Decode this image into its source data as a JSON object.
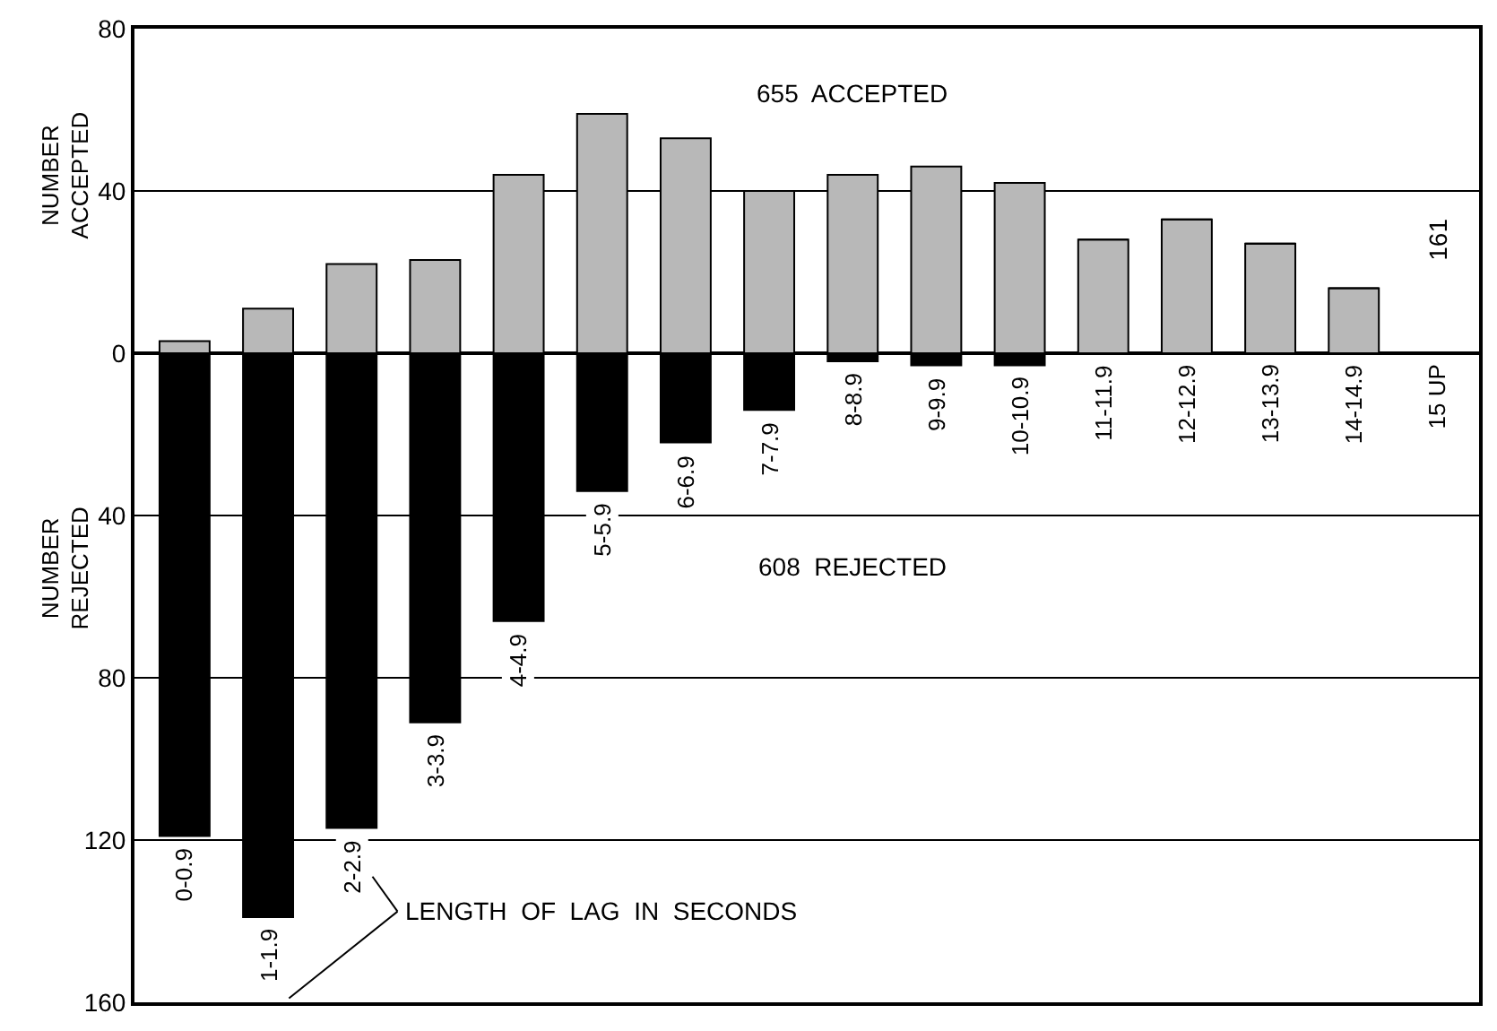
{
  "chart_data": {
    "type": "bar",
    "stacked": true,
    "categories": [
      "0-0.9",
      "1-1.9",
      "2-2.9",
      "3-3.9",
      "4-4.9",
      "5-5.9",
      "6-6.9",
      "7-7.9",
      "8-8.9",
      "9-9.9",
      "10-10.9",
      "11-11.9",
      "12-12.9",
      "13-13.9",
      "14-14.9",
      "15 UP"
    ],
    "series": [
      {
        "color": "#b8b8b8",
        "values": [
          3,
          11,
          22,
          23,
          44,
          59,
          53,
          40,
          44,
          46,
          42,
          28,
          33,
          27,
          16,
          null
        ],
        "value_labels": [
          null,
          null,
          null,
          null,
          null,
          null,
          null,
          null,
          null,
          null,
          null,
          null,
          null,
          null,
          null,
          "161"
        ]
      },
      {
        "color": "#000000",
        "values": [
          -119,
          -139,
          -117,
          -91,
          -66,
          -34,
          -22,
          -14,
          -2,
          -3,
          -3,
          0,
          0,
          0,
          0,
          0
        ]
      }
    ],
    "ylabel": "NUMBER ACCEPTED",
    "ylim": [
      -160,
      80
    ],
    "yticks": [
      80,
      40,
      0,
      {
        "value": -40,
        "label": "40"
      },
      {
        "value": -80,
        "label": "80"
      },
      {
        "value": -120,
        "label": "120"
      },
      {
        "value": -160,
        "label": "160"
      }
    ],
    "grid": "y",
    "annotations": [
      "655  ACCEPTED",
      "608  REJECTED",
      "NUMBER REJECTED",
      "LENGTH  OF  LAG  IN  SECONDS"
    ]
  }
}
